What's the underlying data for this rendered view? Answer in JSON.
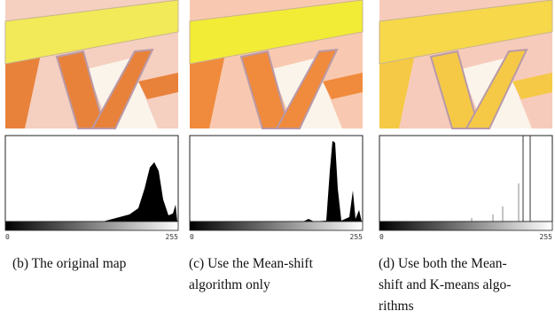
{
  "panels": [
    {
      "axis_min": "0",
      "axis_max": "255",
      "caption": [
        "(b) The original map"
      ]
    },
    {
      "axis_min": "0",
      "axis_max": "255",
      "caption": [
        "(c) Use the Mean-shift",
        "algorithm only"
      ]
    },
    {
      "axis_min": "0",
      "axis_max": "255",
      "caption": [
        "(d) Use both the Mean-",
        "shift and K-means algo-",
        "rithms"
      ]
    }
  ]
}
